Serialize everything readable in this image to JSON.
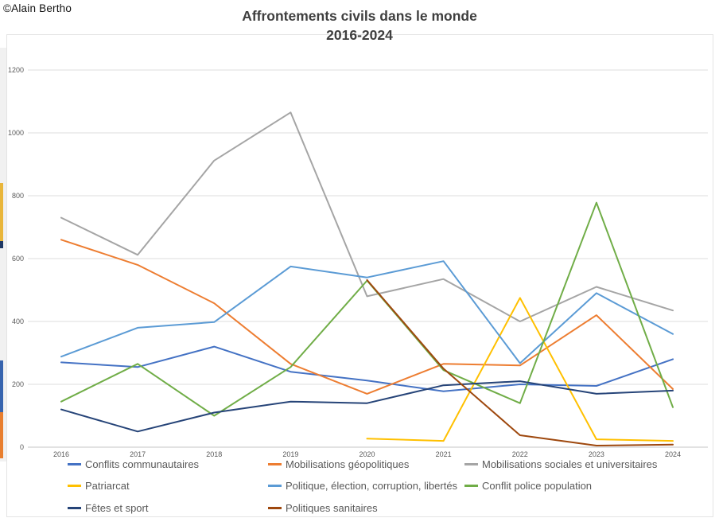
{
  "copyright": "©Alain Bertho",
  "title": {
    "line1": "Affrontements civils dans le monde",
    "line2": "2016-2024"
  },
  "chart_data": {
    "type": "line",
    "x": [
      2016,
      2017,
      2018,
      2019,
      2020,
      2021,
      2022,
      2023,
      2024
    ],
    "y_ticks": [
      0,
      200,
      400,
      600,
      800,
      1000,
      1200
    ],
    "ylim": [
      0,
      1200
    ],
    "grid": true,
    "legend_position": "bottom",
    "series": [
      {
        "name": "Conflits communautaires",
        "color": "#4472C4",
        "values": [
          270,
          255,
          320,
          240,
          212,
          178,
          200,
          195,
          280
        ]
      },
      {
        "name": "Mobilisations géopolitiques",
        "color": "#ED7D31",
        "values": [
          660,
          580,
          458,
          265,
          170,
          265,
          260,
          420,
          185
        ]
      },
      {
        "name": "Mobilisations sociales et universitaires",
        "color": "#A5A5A5",
        "values": [
          730,
          612,
          912,
          1065,
          480,
          535,
          400,
          510,
          435
        ]
      },
      {
        "name": "Patriarcat",
        "color": "#FFC000",
        "values": [
          null,
          null,
          null,
          null,
          27,
          20,
          475,
          25,
          20
        ]
      },
      {
        "name": "Politique, élection, corruption, libertés",
        "color": "#5B9BD5",
        "values": [
          288,
          380,
          398,
          575,
          540,
          592,
          267,
          490,
          360
        ]
      },
      {
        "name": "Conflit police population",
        "color": "#70AD47",
        "values": [
          145,
          265,
          100,
          255,
          530,
          245,
          140,
          778,
          127
        ]
      },
      {
        "name": "Fêtes et sport",
        "color": "#264478",
        "values": [
          120,
          50,
          110,
          145,
          140,
          197,
          210,
          170,
          180
        ]
      },
      {
        "name": "Politiques sanitaires",
        "color": "#9E480E",
        "values": [
          null,
          null,
          null,
          null,
          532,
          250,
          38,
          5,
          8
        ]
      }
    ],
    "edge_strip_colors": {
      "yellow": "#E9B63B",
      "dark": "#1f3864",
      "blue": "#3764AE",
      "orange": "#E87E2E"
    }
  }
}
